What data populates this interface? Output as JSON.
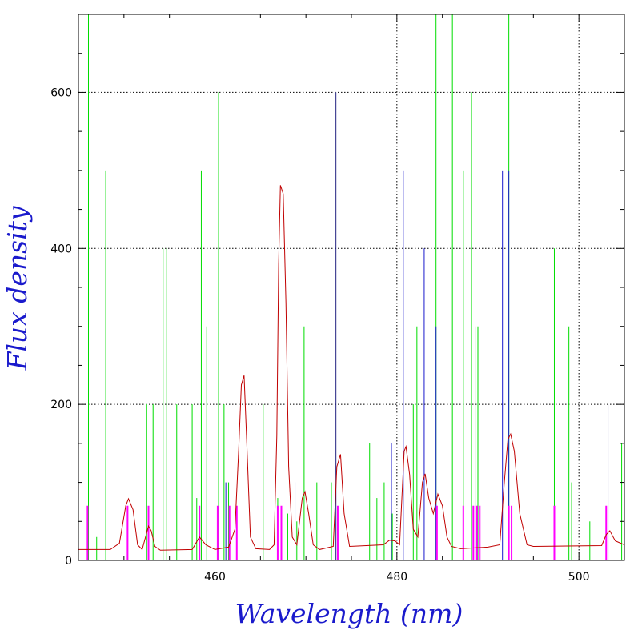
{
  "chart_data": {
    "type": "line",
    "xlabel": "Wavelength (nm)",
    "ylabel": "Flux density",
    "xlim": [
      445,
      505
    ],
    "ylim": [
      0,
      700
    ],
    "xticks": [
      460,
      480,
      500
    ],
    "yticks": [
      0,
      200,
      400,
      600
    ],
    "grid": true,
    "colors": {
      "frame": "#000000",
      "grid": "#000000",
      "axis_title": "#1a1acc",
      "spectrum": "#c00000",
      "green_lines": "#00dd00",
      "blue_lines": "#1a1acc",
      "magenta_lines": "#ff00ff",
      "dark_lines": "#202080"
    },
    "series": [
      {
        "type": "line",
        "points": [
          [
            445.0,
            14
          ],
          [
            448.5,
            14
          ],
          [
            449.5,
            22
          ],
          [
            450.2,
            70
          ],
          [
            450.5,
            79
          ],
          [
            451.0,
            65
          ],
          [
            451.5,
            20
          ],
          [
            452.0,
            14
          ],
          [
            452.7,
            44
          ],
          [
            453.0,
            38
          ],
          [
            453.4,
            18
          ],
          [
            454.0,
            13
          ],
          [
            457.5,
            14
          ],
          [
            458.3,
            30
          ],
          [
            459.0,
            20
          ],
          [
            460.0,
            14
          ],
          [
            461.5,
            17
          ],
          [
            462.2,
            40
          ],
          [
            462.6,
            140
          ],
          [
            462.9,
            225
          ],
          [
            463.2,
            237
          ],
          [
            463.5,
            150
          ],
          [
            463.9,
            30
          ],
          [
            464.5,
            15
          ],
          [
            466.0,
            14
          ],
          [
            466.5,
            20
          ],
          [
            466.8,
            160
          ],
          [
            467.0,
            380
          ],
          [
            467.2,
            481
          ],
          [
            467.5,
            470
          ],
          [
            467.8,
            330
          ],
          [
            468.1,
            120
          ],
          [
            468.5,
            30
          ],
          [
            469.0,
            20
          ],
          [
            469.6,
            80
          ],
          [
            469.9,
            88
          ],
          [
            470.3,
            60
          ],
          [
            470.8,
            20
          ],
          [
            471.5,
            14
          ],
          [
            473.0,
            18
          ],
          [
            473.4,
            120
          ],
          [
            473.8,
            136
          ],
          [
            474.2,
            60
          ],
          [
            474.8,
            18
          ],
          [
            478.5,
            20
          ],
          [
            479.2,
            26
          ],
          [
            479.8,
            25
          ],
          [
            480.3,
            20
          ],
          [
            480.8,
            140
          ],
          [
            481.0,
            146
          ],
          [
            481.4,
            110
          ],
          [
            481.8,
            40
          ],
          [
            482.3,
            30
          ],
          [
            482.8,
            100
          ],
          [
            483.1,
            111
          ],
          [
            483.5,
            80
          ],
          [
            484.0,
            60
          ],
          [
            484.5,
            85
          ],
          [
            485.0,
            70
          ],
          [
            485.5,
            30
          ],
          [
            486.0,
            18
          ],
          [
            487.0,
            15
          ],
          [
            490.0,
            17
          ],
          [
            491.3,
            20
          ],
          [
            491.8,
            100
          ],
          [
            492.2,
            155
          ],
          [
            492.5,
            162
          ],
          [
            492.9,
            140
          ],
          [
            493.5,
            60
          ],
          [
            494.3,
            20
          ],
          [
            495.0,
            18
          ],
          [
            502.5,
            19
          ],
          [
            503.0,
            33
          ],
          [
            503.4,
            38
          ],
          [
            504.0,
            25
          ],
          [
            505.0,
            20
          ]
        ]
      },
      {
        "color_key": "green_lines",
        "lines": [
          [
            446.1,
            700
          ],
          [
            447.0,
            30
          ],
          [
            448.0,
            500
          ],
          [
            452.5,
            200
          ],
          [
            453.2,
            200
          ],
          [
            454.3,
            400
          ],
          [
            454.7,
            400
          ],
          [
            455.8,
            200
          ],
          [
            457.5,
            200
          ],
          [
            458.0,
            80
          ],
          [
            458.5,
            500
          ],
          [
            459.1,
            300
          ],
          [
            460.4,
            600
          ],
          [
            461.0,
            200
          ],
          [
            461.5,
            100
          ],
          [
            465.3,
            200
          ],
          [
            466.9,
            80
          ],
          [
            468.0,
            60
          ],
          [
            469.0,
            50
          ],
          [
            469.8,
            300
          ],
          [
            471.2,
            100
          ],
          [
            472.8,
            100
          ],
          [
            477.0,
            150
          ],
          [
            477.8,
            80
          ],
          [
            478.6,
            100
          ],
          [
            479.5,
            60
          ],
          [
            481.8,
            200
          ],
          [
            482.2,
            300
          ],
          [
            484.3,
            700
          ],
          [
            486.1,
            700
          ],
          [
            487.3,
            500
          ],
          [
            488.2,
            600
          ],
          [
            488.6,
            300
          ],
          [
            488.9,
            300
          ],
          [
            492.3,
            700
          ],
          [
            497.3,
            400
          ],
          [
            498.9,
            300
          ],
          [
            499.2,
            100
          ],
          [
            501.2,
            50
          ],
          [
            504.7,
            150
          ]
        ]
      },
      {
        "color_key": "blue_lines",
        "lines": [
          [
            461.2,
            100
          ],
          [
            468.8,
            100
          ],
          [
            479.4,
            150
          ],
          [
            480.7,
            500
          ],
          [
            483.0,
            400
          ],
          [
            484.3,
            300
          ],
          [
            491.6,
            500
          ],
          [
            492.3,
            500
          ]
        ]
      },
      {
        "color_key": "dark_lines",
        "lines": [
          [
            473.3,
            600
          ],
          [
            503.2,
            200
          ]
        ]
      },
      {
        "color_key": "magenta_lines",
        "lines": [
          [
            446.0,
            70
          ],
          [
            450.4,
            70
          ],
          [
            452.7,
            70
          ],
          [
            458.3,
            70
          ],
          [
            460.3,
            70
          ],
          [
            461.6,
            70
          ],
          [
            462.4,
            70
          ],
          [
            466.9,
            70
          ],
          [
            467.3,
            70
          ],
          [
            473.5,
            70
          ],
          [
            484.4,
            70
          ],
          [
            487.3,
            70
          ],
          [
            488.4,
            70
          ],
          [
            488.8,
            70
          ],
          [
            489.1,
            70
          ],
          [
            492.3,
            70
          ],
          [
            492.6,
            70
          ],
          [
            497.3,
            70
          ],
          [
            503.0,
            70
          ]
        ]
      }
    ]
  }
}
